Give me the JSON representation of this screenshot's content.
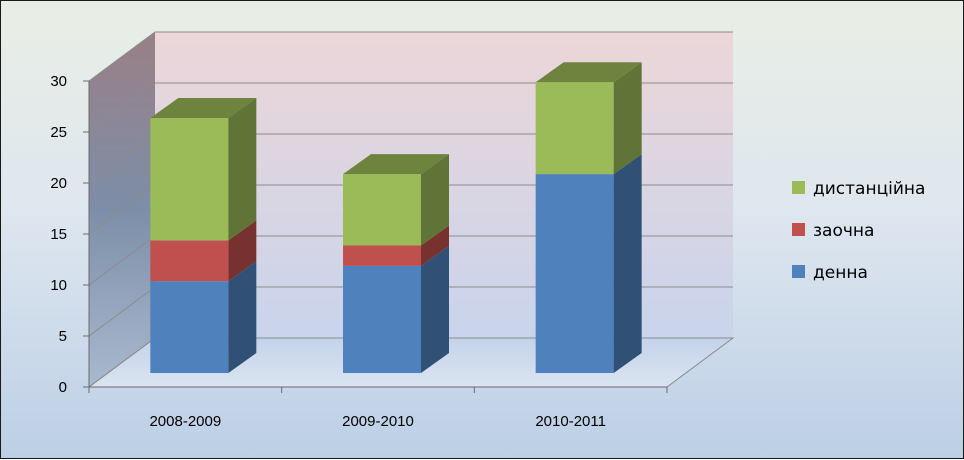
{
  "chart_data": {
    "type": "bar",
    "stacked": true,
    "three_d": true,
    "categories": [
      "2008-2009",
      "2009-2010",
      "2010-2011"
    ],
    "series": [
      {
        "name": "денна",
        "values": [
          9,
          10.5,
          19.5
        ],
        "color": "#4f81bd"
      },
      {
        "name": "заочна",
        "values": [
          4,
          2,
          0
        ],
        "color": "#c0504d"
      },
      {
        "name": "дистанційна",
        "values": [
          12,
          7,
          9
        ],
        "color": "#9bbb59"
      }
    ],
    "yticks": [
      "0",
      "5",
      "10",
      "15",
      "20",
      "25",
      "30"
    ],
    "ylim": [
      0,
      30
    ],
    "grid": true,
    "legend_position": "right",
    "title": "",
    "xlabel": "",
    "ylabel": ""
  }
}
